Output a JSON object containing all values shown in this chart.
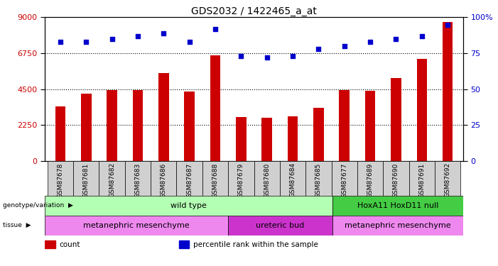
{
  "title": "GDS2032 / 1422465_a_at",
  "samples": [
    "GSM87678",
    "GSM87681",
    "GSM87682",
    "GSM87683",
    "GSM87686",
    "GSM87687",
    "GSM87688",
    "GSM87679",
    "GSM87680",
    "GSM87684",
    "GSM87685",
    "GSM87677",
    "GSM87689",
    "GSM87690",
    "GSM87691",
    "GSM87692"
  ],
  "counts": [
    3400,
    4200,
    4450,
    4450,
    5500,
    4350,
    6600,
    2750,
    2700,
    2800,
    3350,
    4450,
    4400,
    5200,
    6400,
    8700
  ],
  "percentiles": [
    83,
    83,
    85,
    87,
    89,
    83,
    92,
    73,
    72,
    73,
    78,
    80,
    83,
    85,
    87,
    95
  ],
  "ylim_left": [
    0,
    9000
  ],
  "ylim_right": [
    0,
    100
  ],
  "yticks_left": [
    0,
    2250,
    4500,
    6750,
    9000
  ],
  "yticks_right": [
    0,
    25,
    50,
    75,
    100
  ],
  "bar_color": "#cc0000",
  "dot_color": "#0000cc",
  "bg_color": "#d0d0d0",
  "chart_bg": "#ffffff",
  "genotype_groups": [
    {
      "label": "wild type",
      "start": 0,
      "end": 11,
      "color": "#b3ffb3"
    },
    {
      "label": "HoxA11 HoxD11 null",
      "start": 11,
      "end": 16,
      "color": "#44cc44"
    }
  ],
  "tissue_groups": [
    {
      "label": "metanephric mesenchyme",
      "start": 0,
      "end": 7,
      "color": "#ee88ee"
    },
    {
      "label": "ureteric bud",
      "start": 7,
      "end": 11,
      "color": "#cc33cc"
    },
    {
      "label": "metanephric mesenchyme",
      "start": 11,
      "end": 16,
      "color": "#ee88ee"
    }
  ],
  "legend_items": [
    {
      "color": "#cc0000",
      "label": "count"
    },
    {
      "color": "#0000cc",
      "label": "percentile rank within the sample"
    }
  ],
  "left_label_color": "#cc0000",
  "right_label_color": "#0000cc"
}
